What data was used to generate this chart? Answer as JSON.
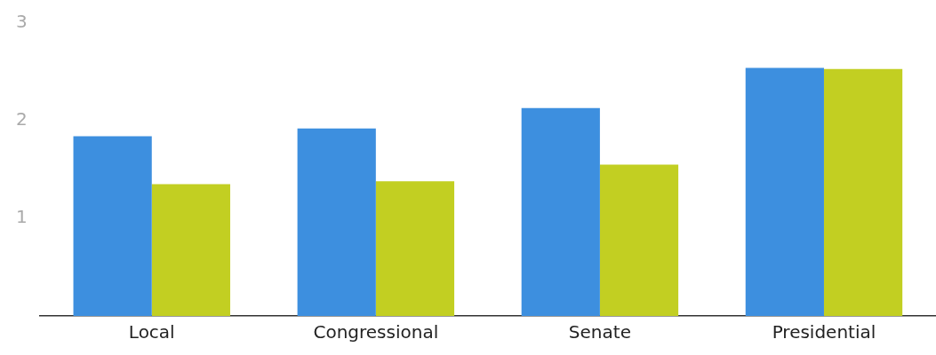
{
  "chart_data": {
    "type": "bar",
    "categories": [
      "Local",
      "Congressional",
      "Senate",
      "Presidential"
    ],
    "series": [
      {
        "color": "#3d8fdf",
        "values": [
          1.84,
          1.92,
          2.13,
          2.54
        ]
      },
      {
        "color": "#c2cf22",
        "values": [
          1.35,
          1.38,
          1.55,
          2.53
        ]
      }
    ],
    "ylim": [
      0,
      3
    ],
    "yticks": [
      1,
      2,
      3
    ],
    "grid": false,
    "legend": false
  }
}
